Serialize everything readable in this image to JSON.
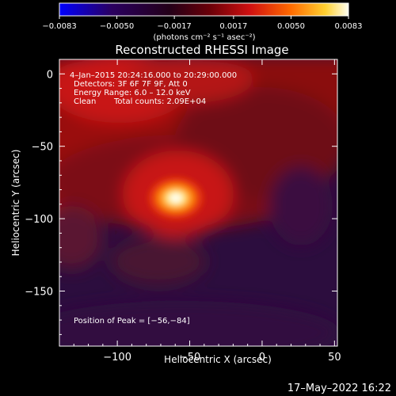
{
  "chart_data": {
    "type": "heatmap",
    "title": "Reconstructed RHESSI Image",
    "xlabel": "Heliocentric X (arcsec)",
    "ylabel": "Heliocentric Y (arcsec)",
    "xlim": [
      -140,
      52
    ],
    "ylim": [
      -188,
      10
    ],
    "x_ticks": [
      -100,
      -50,
      0,
      50
    ],
    "x_tick_labels": [
      "−100",
      "−50",
      "0",
      "50"
    ],
    "y_ticks": [
      0,
      -50,
      -100,
      -150
    ],
    "y_tick_labels": [
      "0",
      "−50",
      "−100",
      "−150"
    ],
    "colorbar": {
      "range": [
        -0.0083,
        0.0083
      ],
      "ticks": [
        -0.0083,
        -0.005,
        -0.0017,
        0.0017,
        0.005,
        0.0083
      ],
      "tick_labels": [
        "−0.0083",
        "−0.0050",
        "−0.0017",
        "0.0017",
        "0.0050",
        "0.0083"
      ],
      "units": "(photons cm⁻² s⁻¹ asec⁻²)"
    },
    "annotations": {
      "time": "4–Jan–2015 20:24:16.000 to 20:29:00.000",
      "detectors": "Detectors: 3F 6F 7F 9F, Att 0",
      "energy": "Energy Range: 6.0 – 12.0 keV",
      "method": "Clean",
      "counts": "Total counts: 2.09E+04",
      "peak": "Position of Peak = [−56,−84]"
    },
    "peak_position": [
      -56,
      -84
    ],
    "footer_timestamp": "17–May–2022 16:22"
  }
}
